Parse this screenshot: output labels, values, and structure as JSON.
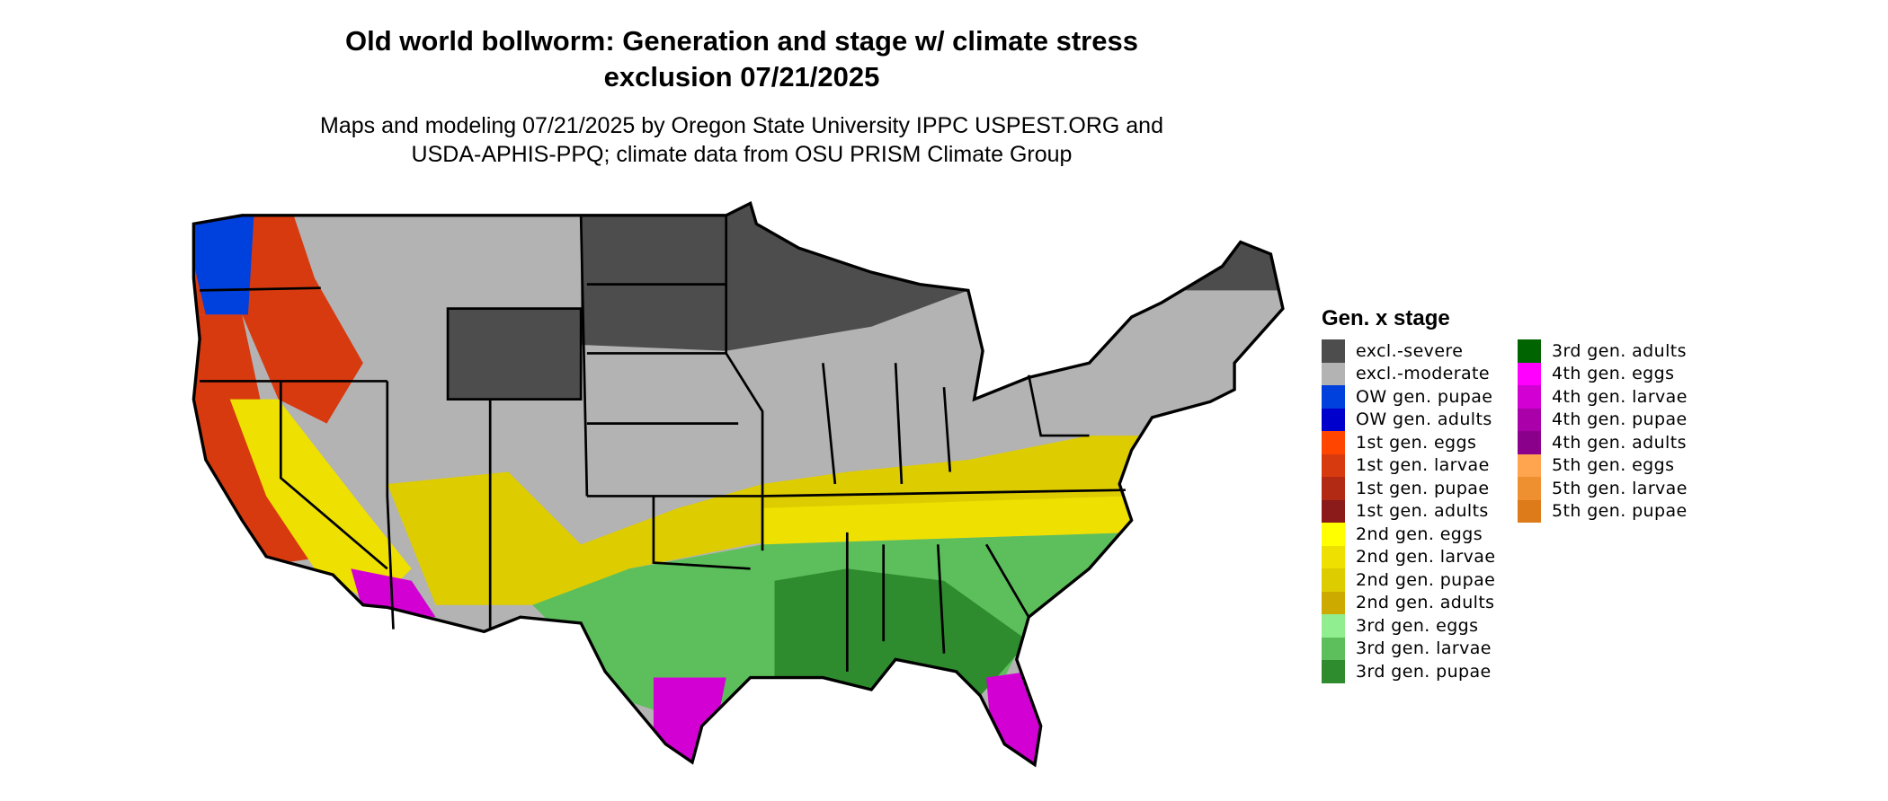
{
  "title": {
    "line1": "Old world bollworm: Generation and stage w/ climate stress",
    "line2": "exclusion 07/21/2025"
  },
  "subtitle": {
    "line1": "Maps and modeling 07/21/2025 by Oregon State University IPPC USPEST.ORG and",
    "line2": "USDA-APHIS-PPQ; climate data from OSU PRISM Climate Group"
  },
  "legend": {
    "title": "Gen. x stage",
    "col1": [
      {
        "label": "excl.-severe",
        "color": "#4d4d4d"
      },
      {
        "label": "excl.-moderate",
        "color": "#b3b3b3"
      },
      {
        "label": "OW gen. pupae",
        "color": "#0040dd"
      },
      {
        "label": "OW gen. adults",
        "color": "#0000cd"
      },
      {
        "label": "1st gen. eggs",
        "color": "#ff4500"
      },
      {
        "label": "1st gen. larvae",
        "color": "#d83a10"
      },
      {
        "label": "1st gen. pupae",
        "color": "#b22a14"
      },
      {
        "label": "1st gen. adults",
        "color": "#8b1a1a"
      },
      {
        "label": "2nd gen. eggs",
        "color": "#ffff00"
      },
      {
        "label": "2nd gen. larvae",
        "color": "#eee000"
      },
      {
        "label": "2nd gen. pupae",
        "color": "#ddcc00"
      },
      {
        "label": "2nd gen. adults",
        "color": "#ccaa00"
      },
      {
        "label": "3rd gen. eggs",
        "color": "#90ee90"
      },
      {
        "label": "3rd gen. larvae",
        "color": "#5cbf5c"
      },
      {
        "label": "3rd gen. pupae",
        "color": "#2e8b2e"
      }
    ],
    "col2": [
      {
        "label": "3rd gen. adults",
        "color": "#006400"
      },
      {
        "label": "4th gen. eggs",
        "color": "#ff00ff"
      },
      {
        "label": "4th gen. larvae",
        "color": "#d200d2"
      },
      {
        "label": "4th gen. pupae",
        "color": "#aa00aa"
      },
      {
        "label": "4th gen. adults",
        "color": "#8b008b"
      },
      {
        "label": "5th gen. eggs",
        "color": "#ffa54f"
      },
      {
        "label": "5th gen. larvae",
        "color": "#ee9030"
      },
      {
        "label": "5th gen. pupae",
        "color": "#dd7a1a"
      }
    ]
  }
}
